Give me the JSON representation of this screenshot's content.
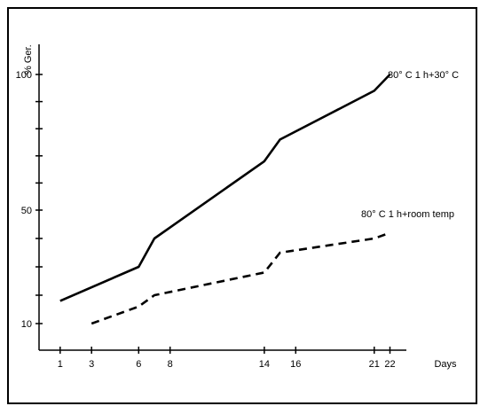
{
  "chart_data": {
    "type": "line",
    "xlabel": "Days",
    "ylabel": "% Ger.",
    "xlim": [
      0,
      24
    ],
    "ylim": [
      0,
      105
    ],
    "x_ticks": [
      1,
      3,
      6,
      8,
      14,
      16,
      21,
      22
    ],
    "y_ticks": [
      10,
      50,
      100
    ],
    "y_minor_ticks": [
      20,
      30,
      40,
      60,
      70,
      80,
      90
    ],
    "grid": false,
    "series": [
      {
        "name": "80° C 1 h+30° C",
        "style": "solid",
        "color": "#000000",
        "x": [
          1,
          6,
          7,
          14,
          15,
          21,
          22
        ],
        "y": [
          18,
          30,
          40,
          68,
          76,
          94,
          100
        ]
      },
      {
        "name": "80° C 1 h+room temp",
        "style": "dashed",
        "color": "#000000",
        "x": [
          3,
          6,
          7,
          14,
          15,
          21,
          22
        ],
        "y": [
          10,
          16,
          20,
          28,
          35,
          40,
          42
        ]
      }
    ]
  }
}
